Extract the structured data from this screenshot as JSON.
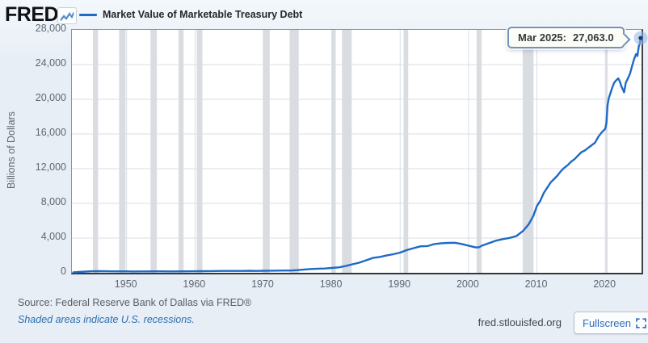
{
  "header": {
    "logo_text": "FRED",
    "logo_reg": ".",
    "legend_label": "Market Value of Marketable Treasury Debt"
  },
  "tooltip": {
    "date_label": "Mar 2025:",
    "value": "27,063.0"
  },
  "y_axis_title": "Billions of Dollars",
  "footer": {
    "source": "Source: Federal Reserve Bank of Dallas via FRED®",
    "recession_note": "Shaded areas indicate U.S. recessions.",
    "site": "fred.stlouisfed.org",
    "fullscreen_label": "Fullscreen"
  },
  "colors": {
    "line": "#1f6ac5",
    "recession": "#d9dce1",
    "grid": "#d9dee3",
    "marker_halo": "rgba(148,182,224,0.55)",
    "marker_dot": "#16407c",
    "link": "#2a6fb0",
    "fullscreen_text": "#2f6ebd"
  },
  "chart_data": {
    "type": "line",
    "title": "Market Value of Marketable Treasury Debt",
    "ylabel": "Billions of Dollars",
    "legend_position": "top-left",
    "grid": true,
    "x_range": [
      1942,
      2025.3
    ],
    "y_range": [
      0,
      28000
    ],
    "x_ticks": [
      {
        "label": "1950",
        "value": 1950
      },
      {
        "label": "1960",
        "value": 1960
      },
      {
        "label": "1970",
        "value": 1970
      },
      {
        "label": "1980",
        "value": 1980
      },
      {
        "label": "1990",
        "value": 1990
      },
      {
        "label": "2000",
        "value": 2000
      },
      {
        "label": "2010",
        "value": 2010
      },
      {
        "label": "2020",
        "value": 2020
      }
    ],
    "y_ticks": [
      {
        "label": "0",
        "value": 0
      },
      {
        "label": "4,000",
        "value": 4000
      },
      {
        "label": "8,000",
        "value": 8000
      },
      {
        "label": "12,000",
        "value": 12000
      },
      {
        "label": "16,000",
        "value": 16000
      },
      {
        "label": "20,000",
        "value": 20000
      },
      {
        "label": "24,000",
        "value": 24000
      },
      {
        "label": "28,000",
        "value": 28000
      }
    ],
    "recessions": [
      [
        1945.08,
        1945.83
      ],
      [
        1948.9,
        1949.83
      ],
      [
        1953.5,
        1954.42
      ],
      [
        1957.58,
        1958.33
      ],
      [
        1960.25,
        1961.08
      ],
      [
        1969.92,
        1970.92
      ],
      [
        1973.83,
        1975.17
      ],
      [
        1980.0,
        1980.58
      ],
      [
        1981.5,
        1982.92
      ],
      [
        1990.5,
        1991.17
      ],
      [
        2001.17,
        2001.92
      ],
      [
        2007.92,
        2009.5
      ],
      [
        2020.08,
        2020.33
      ]
    ],
    "last_point": {
      "x": 2025.17,
      "y": 27063,
      "label": "Mar 2025: 27,063.0"
    },
    "series": [
      [
        1942.2,
        60
      ],
      [
        1943,
        95
      ],
      [
        1944,
        135
      ],
      [
        1945,
        175
      ],
      [
        1946,
        195
      ],
      [
        1947,
        175
      ],
      [
        1948,
        165
      ],
      [
        1949,
        170
      ],
      [
        1950,
        165
      ],
      [
        1951,
        150
      ],
      [
        1952,
        155
      ],
      [
        1953,
        155
      ],
      [
        1954,
        170
      ],
      [
        1955,
        165
      ],
      [
        1956,
        158
      ],
      [
        1957,
        158
      ],
      [
        1958,
        168
      ],
      [
        1959,
        170
      ],
      [
        1960,
        180
      ],
      [
        1961,
        190
      ],
      [
        1962,
        198
      ],
      [
        1963,
        205
      ],
      [
        1964,
        210
      ],
      [
        1965,
        212
      ],
      [
        1966,
        210
      ],
      [
        1967,
        218
      ],
      [
        1968,
        228
      ],
      [
        1969,
        215
      ],
      [
        1970,
        228
      ],
      [
        1971,
        245
      ],
      [
        1972,
        255
      ],
      [
        1973,
        258
      ],
      [
        1974,
        265
      ],
      [
        1975,
        310
      ],
      [
        1976,
        385
      ],
      [
        1977,
        435
      ],
      [
        1978,
        470
      ],
      [
        1979,
        495
      ],
      [
        1980,
        555
      ],
      [
        1981,
        620
      ],
      [
        1982,
        770
      ],
      [
        1983,
        980
      ],
      [
        1984,
        1160
      ],
      [
        1985,
        1430
      ],
      [
        1986,
        1710
      ],
      [
        1987,
        1820
      ],
      [
        1988,
        1990
      ],
      [
        1989,
        2140
      ],
      [
        1990,
        2330
      ],
      [
        1991,
        2620
      ],
      [
        1992,
        2850
      ],
      [
        1993,
        3050
      ],
      [
        1994,
        3080
      ],
      [
        1995,
        3310
      ],
      [
        1996,
        3400
      ],
      [
        1997,
        3440
      ],
      [
        1998,
        3460
      ],
      [
        1999,
        3320
      ],
      [
        2000,
        3130
      ],
      [
        2001,
        2940
      ],
      [
        2001.5,
        2930
      ],
      [
        2002,
        3140
      ],
      [
        2003,
        3420
      ],
      [
        2004,
        3700
      ],
      [
        2005,
        3880
      ],
      [
        2006,
        4020
      ],
      [
        2007,
        4230
      ],
      [
        2008,
        4850
      ],
      [
        2008.8,
        5600
      ],
      [
        2009.5,
        6600
      ],
      [
        2010,
        7700
      ],
      [
        2010.5,
        8300
      ],
      [
        2011,
        9200
      ],
      [
        2011.5,
        9800
      ],
      [
        2012,
        10400
      ],
      [
        2012.5,
        10800
      ],
      [
        2013,
        11200
      ],
      [
        2013.5,
        11700
      ],
      [
        2014,
        12100
      ],
      [
        2014.5,
        12400
      ],
      [
        2015,
        12800
      ],
      [
        2015.5,
        13100
      ],
      [
        2016,
        13500
      ],
      [
        2016.5,
        13900
      ],
      [
        2017,
        14100
      ],
      [
        2017.5,
        14400
      ],
      [
        2018,
        14700
      ],
      [
        2018.5,
        15000
      ],
      [
        2019,
        15700
      ],
      [
        2019.5,
        16200
      ],
      [
        2020,
        16600
      ],
      [
        2020.17,
        17300
      ],
      [
        2020.33,
        19300
      ],
      [
        2020.5,
        20100
      ],
      [
        2020.75,
        20700
      ],
      [
        2021,
        21300
      ],
      [
        2021.3,
        21900
      ],
      [
        2021.6,
        22200
      ],
      [
        2021.9,
        22400
      ],
      [
        2022.1,
        22100
      ],
      [
        2022.4,
        21400
      ],
      [
        2022.6,
        21100
      ],
      [
        2022.75,
        20800
      ],
      [
        2023,
        21900
      ],
      [
        2023.3,
        22400
      ],
      [
        2023.6,
        22900
      ],
      [
        2023.9,
        23800
      ],
      [
        2024.2,
        24600
      ],
      [
        2024.5,
        25200
      ],
      [
        2024.7,
        25000
      ],
      [
        2024.9,
        26100
      ],
      [
        2025.0,
        26300
      ],
      [
        2025.08,
        26600
      ],
      [
        2025.17,
        27063
      ]
    ]
  }
}
